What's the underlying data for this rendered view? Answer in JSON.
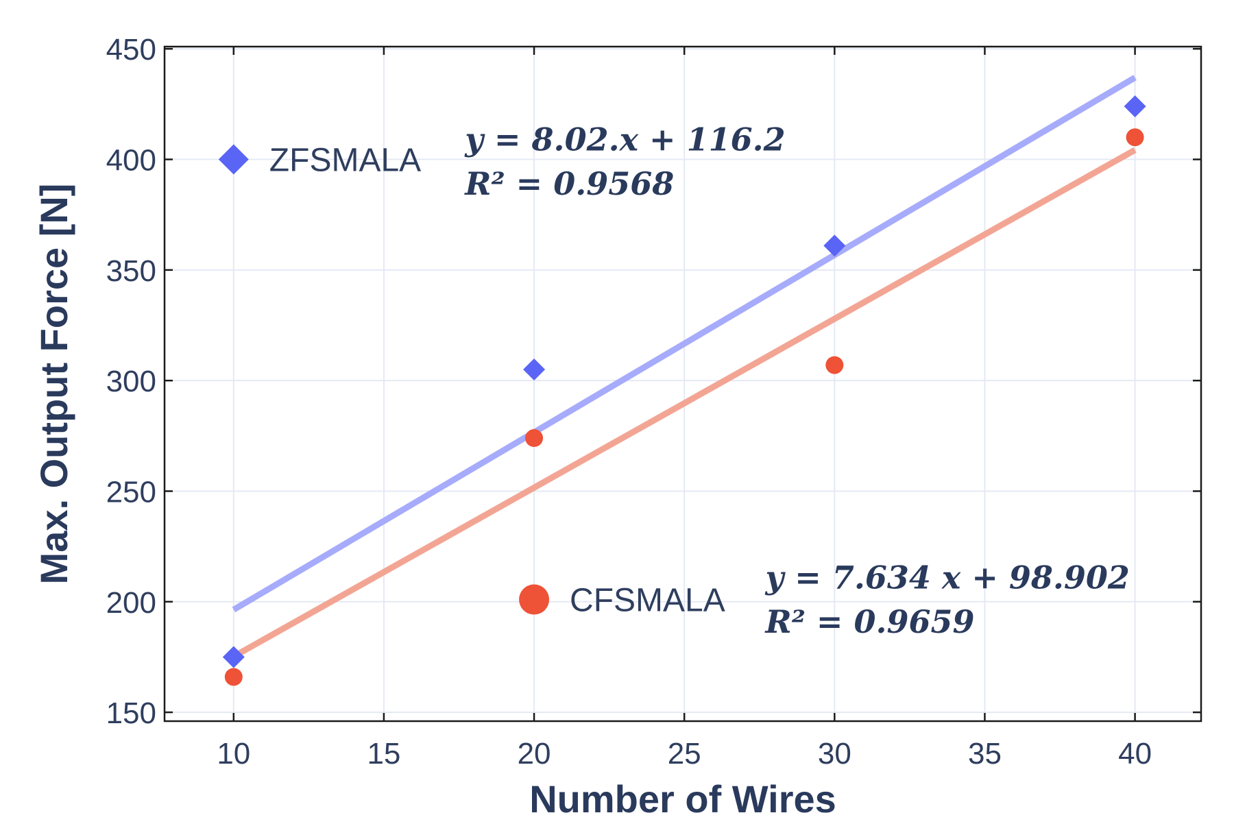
{
  "chart_data": {
    "type": "scatter",
    "title": "",
    "xlabel": "Number of Wires",
    "ylabel": "Max. Output Force [N]",
    "xlim": [
      7.7,
      42.2
    ],
    "ylim": [
      146,
      451
    ],
    "xticks": [
      10,
      15,
      20,
      25,
      30,
      35,
      40
    ],
    "yticks": [
      150,
      200,
      250,
      300,
      350,
      400,
      450
    ],
    "grid": true,
    "series": [
      {
        "name": "ZFSMALA",
        "marker": "diamond",
        "color": "#5a64f5",
        "fit_color": "#a7abfb",
        "x": [
          10,
          20,
          30,
          40
        ],
        "y": [
          175,
          305,
          361,
          424
        ],
        "fit": {
          "slope": 8.02,
          "intercept": 116.2,
          "x_range": [
            10,
            40
          ]
        },
        "equation_line1": "y = 8.02.x + 116.2",
        "equation_line2": "R² = 0.9568"
      },
      {
        "name": "CFSMALA",
        "marker": "circle",
        "color": "#ee5237",
        "fit_color": "#f3a594",
        "x": [
          10,
          20,
          30,
          40
        ],
        "y": [
          166,
          274,
          307,
          410
        ],
        "fit": {
          "slope": 7.634,
          "intercept": 98.902,
          "x_range": [
            10,
            40
          ]
        },
        "equation_line1": "y = 7.634 x + 98.902",
        "equation_line2": "R² = 0.9659"
      }
    ],
    "annotations": [
      {
        "series": 0,
        "legend_x": 10,
        "legend_y": 400,
        "eq_x": 17.7,
        "eq_y1": 404,
        "eq_y2": 384
      },
      {
        "series": 1,
        "legend_x": 20,
        "legend_y": 201,
        "eq_x": 27.7,
        "eq_y1": 206,
        "eq_y2": 186
      }
    ]
  }
}
